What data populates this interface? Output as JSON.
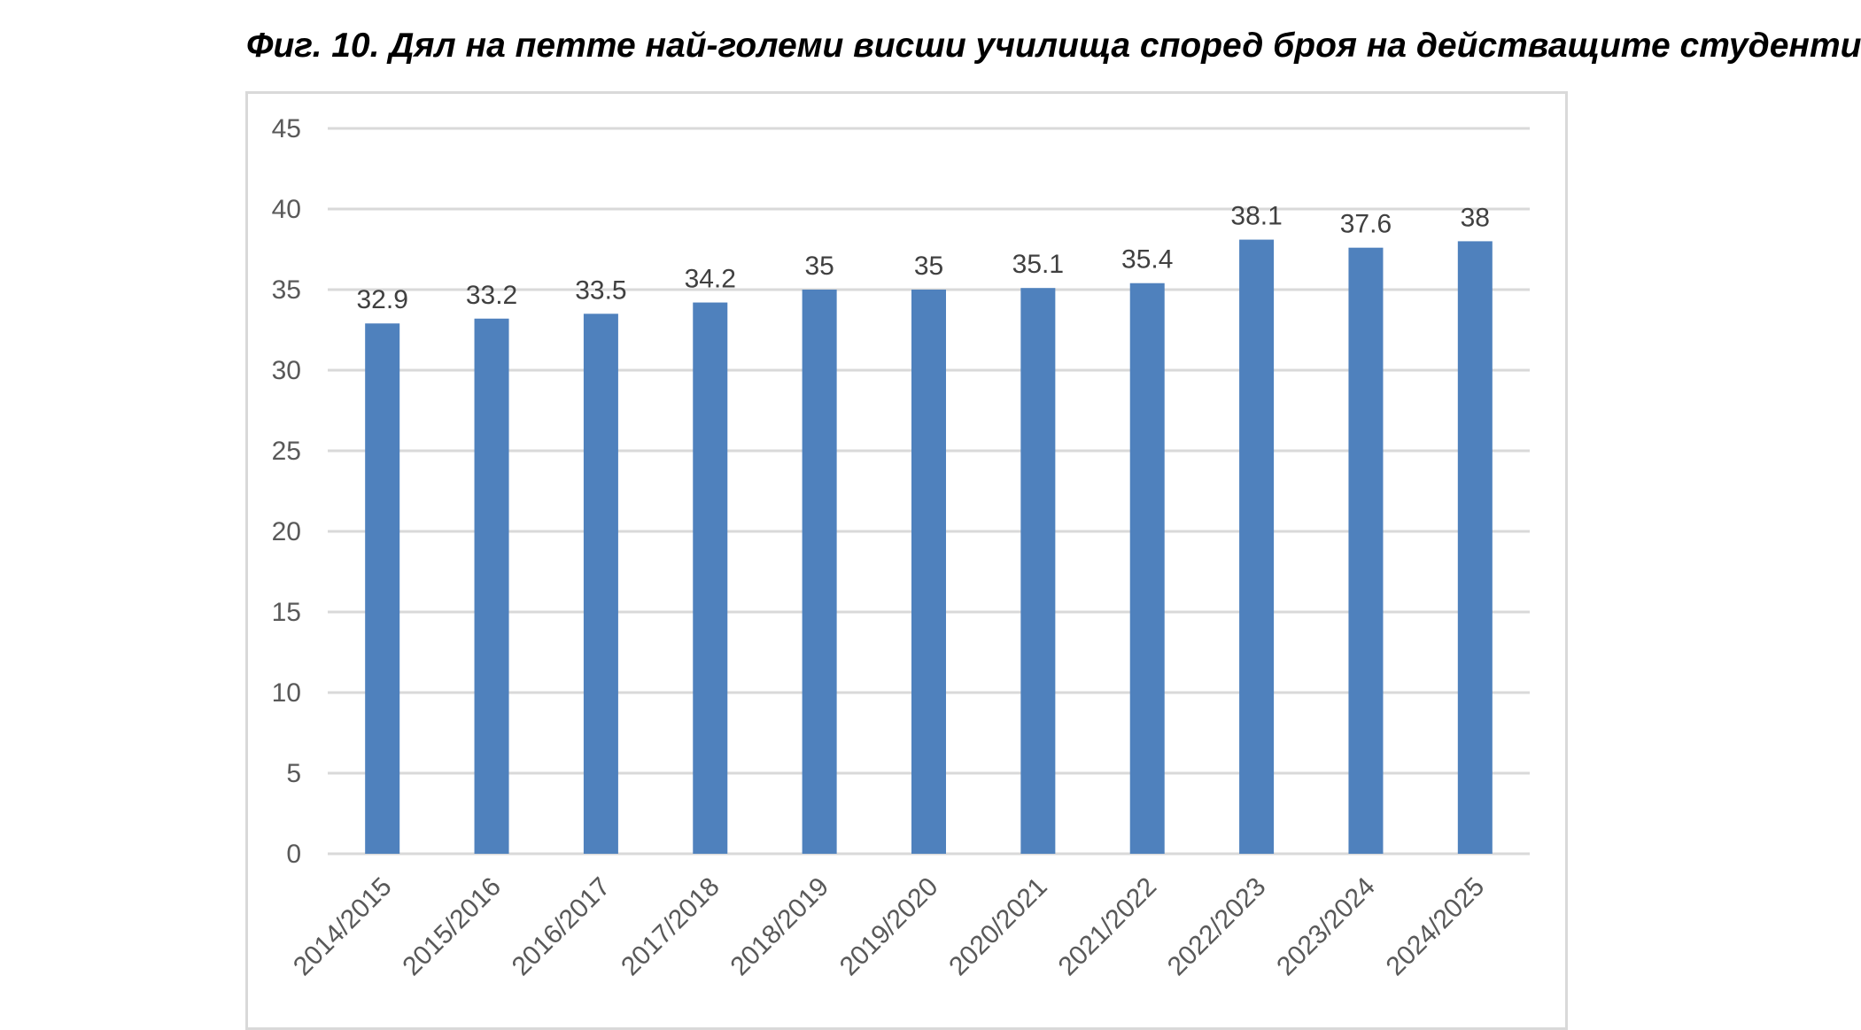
{
  "figure": {
    "title": "Фиг. 10. Дял на петте най-големи висши училища според броя на действащите студенти"
  },
  "chart_data": {
    "type": "bar",
    "title": "",
    "xlabel": "",
    "ylabel": "",
    "categories": [
      "2014/2015",
      "2015/2016",
      "2016/2017",
      "2017/2018",
      "2018/2019",
      "2019/2020",
      "2020/2021",
      "2021/2022",
      "2022/2023",
      "2023/2024",
      "2024/2025"
    ],
    "values": [
      32.9,
      33.2,
      33.5,
      34.2,
      35,
      35,
      35.1,
      35.4,
      38.1,
      37.6,
      38
    ],
    "value_labels": [
      "32.9",
      "33.2",
      "33.5",
      "34.2",
      "35",
      "35",
      "35.1",
      "35.4",
      "38.1",
      "37.6",
      "38"
    ],
    "ylim": [
      0,
      45
    ],
    "yticks": [
      0,
      5,
      10,
      15,
      20,
      25,
      30,
      35,
      40,
      45
    ],
    "ytick_labels": [
      "0",
      "5",
      "10",
      "15",
      "20",
      "25",
      "30",
      "35",
      "40",
      "45"
    ],
    "grid": true,
    "legend": "none",
    "colors": {
      "bar": "#4f81bd",
      "grid": "#d9d9d9",
      "axis": "#d9d9d9"
    }
  }
}
